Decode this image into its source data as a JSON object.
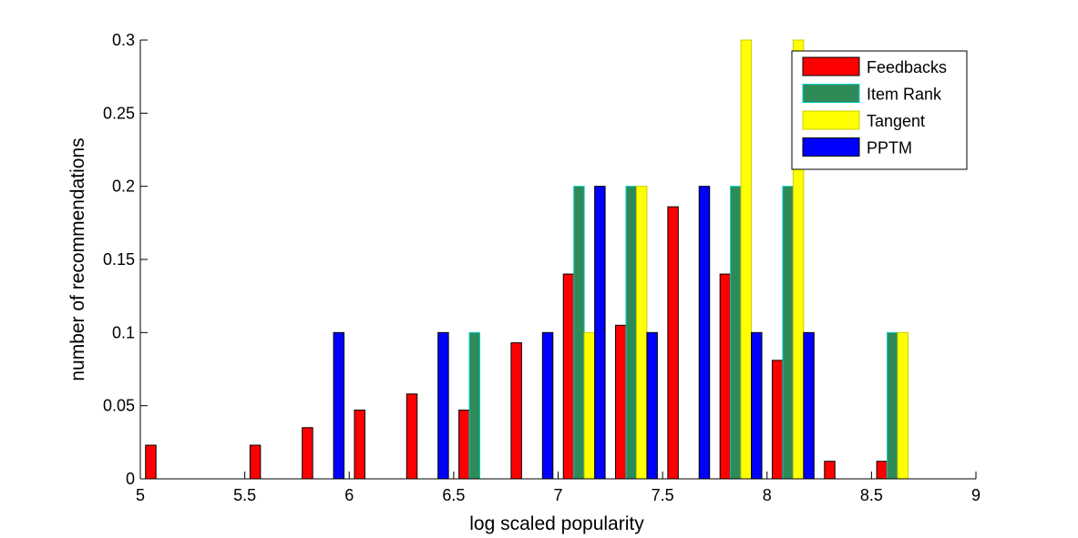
{
  "chart_data": {
    "type": "bar",
    "title": "",
    "xlabel": "log scaled popularity",
    "ylabel": "number of recommendations",
    "xlim": [
      5,
      9
    ],
    "ylim": [
      0,
      0.3
    ],
    "xticks": [
      "5",
      "5.5",
      "6",
      "6.5",
      "7",
      "7.5",
      "8",
      "8.5",
      "9"
    ],
    "yticks": [
      "0",
      "0.05",
      "0.1",
      "0.15",
      "0.2",
      "0.25",
      "0.3"
    ],
    "grid": false,
    "legend_position": "top-right",
    "bin_centers": [
      5.125,
      5.375,
      5.625,
      5.875,
      6.125,
      6.375,
      6.625,
      6.875,
      7.125,
      7.375,
      7.625,
      7.875,
      8.125,
      8.375,
      8.625,
      8.875
    ],
    "series": [
      {
        "name": "Feedbacks",
        "color": "#ff0000",
        "edge": "#000000",
        "values": [
          0.023,
          0,
          0.023,
          0.035,
          0.047,
          0.058,
          0.047,
          0.093,
          0.14,
          0.105,
          0.186,
          0.14,
          0.081,
          0.012,
          0.012,
          0
        ]
      },
      {
        "name": "Item Rank",
        "color": "#2e8b57",
        "edge": "#00cccc",
        "values": [
          0,
          0,
          0,
          0,
          0,
          0,
          0.1,
          0,
          0.2,
          0.2,
          0,
          0.2,
          0.2,
          0,
          0.1,
          0
        ]
      },
      {
        "name": "Tangent",
        "color": "#ffff00",
        "edge": "#cccc00",
        "values": [
          0,
          0,
          0,
          0,
          0,
          0,
          0,
          0,
          0.1,
          0.2,
          0,
          0.3,
          0.3,
          0,
          0.1,
          0
        ]
      },
      {
        "name": "PPTM",
        "color": "#0000ff",
        "edge": "#000000",
        "values": [
          0,
          0,
          0,
          0.1,
          0,
          0.1,
          0,
          0.1,
          0.2,
          0.1,
          0.2,
          0.1,
          0.1,
          0,
          0,
          0
        ]
      }
    ]
  }
}
